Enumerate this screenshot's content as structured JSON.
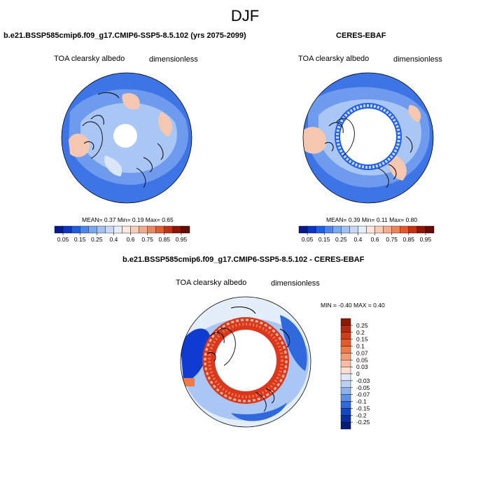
{
  "figure": {
    "title": "DJF"
  },
  "panels": [
    {
      "id": "model",
      "title": "b.e21.BSSP585cmip6.f09_g17.CMIP6-SSP5-8.5.102 (yrs 2075-2099)",
      "left_label": "TOA clearsky albedo",
      "right_label": "dimensionless",
      "stats": {
        "mean_label": "MEAN=",
        "mean": "0.37",
        "min_label": "Min=",
        "min": "0.19",
        "max_label": "Max=",
        "max": "0.65"
      }
    },
    {
      "id": "obs",
      "title": "CERES-EBAF",
      "left_label": "TOA clearsky albedo",
      "right_label": "dimensionless",
      "stats": {
        "mean_label": "MEAN=",
        "mean": "0.39",
        "min_label": "Min=",
        "min": "0.11",
        "max_label": "Max=",
        "max": "0.80"
      }
    },
    {
      "id": "diff",
      "title": "b.e21.BSSP585cmip6.f09_g17.CMIP6-SSP5-8.5.102 - CERES-EBAF",
      "left_label": "TOA clearsky albedo",
      "right_label": "dimensionless",
      "stats": {
        "min_label": "MIN =",
        "min": "-0.40",
        "max_label": "MAX =",
        "max": "0.40"
      }
    }
  ],
  "colorbar_main": {
    "labels": [
      "0.05",
      "0.15",
      "0.25",
      "0.4",
      "0.6",
      "0.75",
      "0.85",
      "0.95"
    ],
    "colors": [
      "#08198f",
      "#0a36c8",
      "#1f5ee8",
      "#4a86ee",
      "#7aa8f2",
      "#a3c2f4",
      "#c6d8f6",
      "#e4eef9",
      "#fbe6dc",
      "#f7cdb7",
      "#f3ad8b",
      "#ee8459",
      "#e35a2e",
      "#c73111",
      "#941408",
      "#6a0a04"
    ]
  },
  "colorbar_diff": {
    "labels": [
      "0.25",
      "0.2",
      "0.15",
      "0.1",
      "0.07",
      "0.05",
      "0.03",
      "0",
      "-0.03",
      "-0.05",
      "-0.07",
      "-0.1",
      "-0.15",
      "-0.2",
      "-0.25"
    ],
    "colors": [
      "#8a1a06",
      "#b52a10",
      "#d23d18",
      "#e65a2a",
      "#ee7a4a",
      "#f29c74",
      "#f6bea4",
      "#fadfd2",
      "#dfeaf8",
      "#b9d0f1",
      "#8db2ea",
      "#5d8fe4",
      "#3069de",
      "#1547c4",
      "#0a2fa0",
      "#061c78"
    ]
  },
  "map_colors": {
    "ocean_blue": "#3d74e6",
    "mid_blue": "#6e9bee",
    "light_blue": "#aac6f4",
    "pale": "#dbe7f8",
    "salmon": "#f6c7b0",
    "white": "#ffffff",
    "diff_red": "#d9381e",
    "diff_dark_blue": "#0f3bd0",
    "diff_pale": "#e4eef9"
  }
}
